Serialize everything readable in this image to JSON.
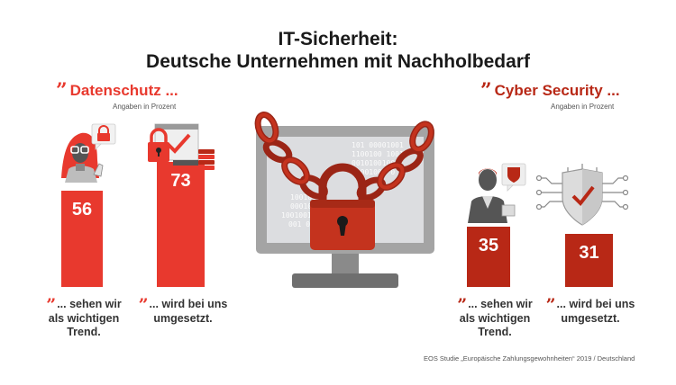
{
  "title_line1": "IT-Sicherheit:",
  "title_line2": "Deutsche Unternehmen mit Nachholbedarf",
  "colors": {
    "red": "#e8392e",
    "darkred": "#b82816",
    "quote_red": "#e8392e",
    "quote_darkred": "#b82816",
    "gray": "#9a9a9a"
  },
  "left": {
    "quote_mark": "”",
    "heading": "Datenschutz ...",
    "unit": "Angaben in Prozent",
    "captions": [
      {
        "quote_mark": "”",
        "line1": "... sehen wir",
        "line2": "als wichtigen",
        "line3": "Trend."
      },
      {
        "quote_mark": "”",
        "line1": "... wird bei uns",
        "line2": "umgesetzt.",
        "line3": ""
      }
    ]
  },
  "right": {
    "quote_mark": "”",
    "heading": "Cyber Security ...",
    "unit": "Angaben in Prozent",
    "captions": [
      {
        "quote_mark": "”",
        "line1": "... sehen wir",
        "line2": "als wichtigen",
        "line3": "Trend."
      },
      {
        "quote_mark": "”",
        "line1": "... wird bei uns",
        "line2": "umgesetzt.",
        "line3": ""
      }
    ]
  },
  "icons": [
    "person-lock-icon",
    "lock-checkmark-icon",
    "chained-monitor-icon",
    "person-shield-icon",
    "shield-checkmark-icon"
  ],
  "source": "EOS Studie „Europäische Zahlungsgewohnheiten“ 2019 / Deutschland",
  "chart_data": [
    {
      "type": "bar",
      "title": "Datenschutz ...",
      "ylabel": "Angaben in Prozent",
      "categories": [
        "... sehen wir als wichtigen Trend.",
        "... wird bei uns umgesetzt."
      ],
      "values": [
        56,
        73
      ],
      "color": "#e8392e"
    },
    {
      "type": "bar",
      "title": "Cyber Security ...",
      "ylabel": "Angaben in Prozent",
      "categories": [
        "... sehen wir als wichtigen Trend.",
        "... wird bei uns umgesetzt."
      ],
      "values": [
        35,
        31
      ],
      "color": "#b82816"
    }
  ]
}
